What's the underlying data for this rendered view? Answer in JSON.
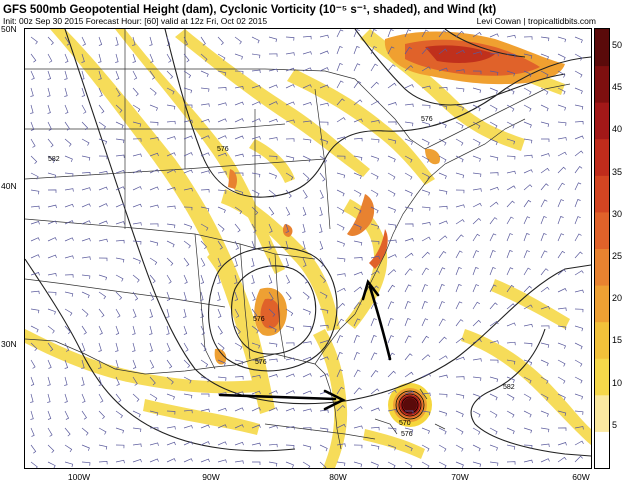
{
  "header": {
    "title": "GFS 500mb Geopotential Height (dam), Cyclonic Vorticity (10⁻⁵ s⁻¹, shaded), and Wind (kt)",
    "subtitle": "Init: 00z Sep 30 2015   Forecast Hour: [60]   valid at 12z Fri, Oct 02 2015",
    "credit": "Levi Cowan | tropicaltidbits.com"
  },
  "map": {
    "lat_labels": [
      "50N",
      "40N",
      "30N"
    ],
    "lon_labels": [
      "100W",
      "90W",
      "80W",
      "70W",
      "60W"
    ],
    "contour_labels": [
      "582",
      "576",
      "576",
      "576",
      "576",
      "570",
      "576",
      "582"
    ],
    "annotation": "Hand-drawn arrows pointing toward the mid-Atlantic coast and the Bahamas",
    "colors": {
      "low_vort": "#f5d63d",
      "mid_vort": "#f0a030",
      "high_vort": "#e05a1e",
      "core": "#8b1010",
      "contour": "#222222",
      "wind_barb": "#5a5a9c"
    }
  },
  "colorbar": {
    "ticks": [
      "50",
      "45",
      "40",
      "35",
      "30",
      "25",
      "20",
      "15",
      "10",
      "5"
    ],
    "min": 0,
    "max": 52,
    "colors": [
      "#ffffff",
      "#fbe9a0",
      "#f6d84a",
      "#f2c13a",
      "#eea033",
      "#e88230",
      "#e0622a",
      "#d34522",
      "#bf2c1c",
      "#a21818",
      "#7e0f0f",
      "#5a0a0a"
    ]
  }
}
